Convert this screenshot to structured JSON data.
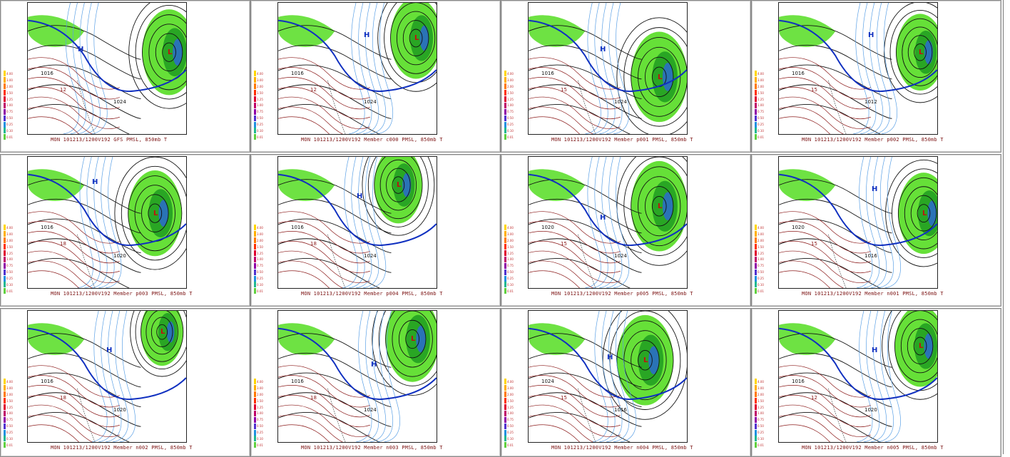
{
  "panels": [
    {
      "caption": "MON 101213/1200V192  GFS PMSL, 850mb T"
    },
    {
      "caption": "MON 101213/1200V192  Member c000 PMSL, 850mb T"
    },
    {
      "caption": "MON 101213/1200V192  Member p001 PMSL, 850mb T"
    },
    {
      "caption": "MON 101213/1200V192  Member p002 PMSL, 850mb T"
    },
    {
      "caption": "MON 101213/1200V192  Member p003 PMSL, 850mb T"
    },
    {
      "caption": "MON 101213/1200V192  Member p004 PMSL, 850mb T"
    },
    {
      "caption": "MON 101213/1200V192  Member p005 PMSL, 850mb T"
    },
    {
      "caption": "MON 101213/1200V192  Member n001 PMSL, 850mb T"
    },
    {
      "caption": "MON 101213/1200V192  Member n002 PMSL, 850mb T"
    },
    {
      "caption": "MON 101213/1200V192  Member n003 PMSL, 850mb T"
    },
    {
      "caption": "MON 101213/1200V192  Member n004 PMSL, 850mb T"
    },
    {
      "caption": "MON 101213/1200V192  Member n005 PMSL, 850mb T"
    }
  ],
  "legend_values": [
    "4.00",
    "3.00",
    "2.00",
    "1.50",
    "1.25",
    "1.00",
    "0.75",
    "0.50",
    "0.25",
    "0.10",
    "0.01"
  ],
  "colors": {
    "precip_green": "#55dd22",
    "precip_dark": "#22a022",
    "isobar": "#111111",
    "temp": "#8b1a1a",
    "cold_temp": "#5aa0e6",
    "freezing_line": "#1030c0",
    "caption": "#7a1010"
  },
  "map_labels": [
    {
      "H": "H",
      "L": "L",
      "p1": "1016",
      "p2": "1024",
      "t": "12"
    },
    {
      "H": "H",
      "L": "L",
      "p1": "1016",
      "p2": "1024",
      "t": "12"
    },
    {
      "H": "H",
      "L": "L",
      "p1": "1016",
      "p2": "1024",
      "t": "15"
    },
    {
      "H": "H",
      "L": "L",
      "p1": "1016",
      "p2": "1012",
      "t": "15"
    },
    {
      "H": "H",
      "L": "L",
      "p1": "1016",
      "p2": "1020",
      "t": "18"
    },
    {
      "H": "H",
      "L": "L",
      "p1": "1016",
      "p2": "1024",
      "t": "18"
    },
    {
      "H": "H",
      "L": "L",
      "p1": "1020",
      "p2": "1024",
      "t": "15"
    },
    {
      "H": "H",
      "L": "L",
      "p1": "1020",
      "p2": "1016",
      "t": "15"
    },
    {
      "H": "H",
      "L": "L",
      "p1": "1016",
      "p2": "1020",
      "t": "18"
    },
    {
      "H": "H",
      "L": "L",
      "p1": "1016",
      "p2": "1024",
      "t": "18"
    },
    {
      "H": "H",
      "L": "L",
      "p1": "1024",
      "p2": "1016",
      "t": "15"
    },
    {
      "H": "H",
      "L": "L",
      "p1": "1016",
      "p2": "1020",
      "t": "12"
    }
  ]
}
